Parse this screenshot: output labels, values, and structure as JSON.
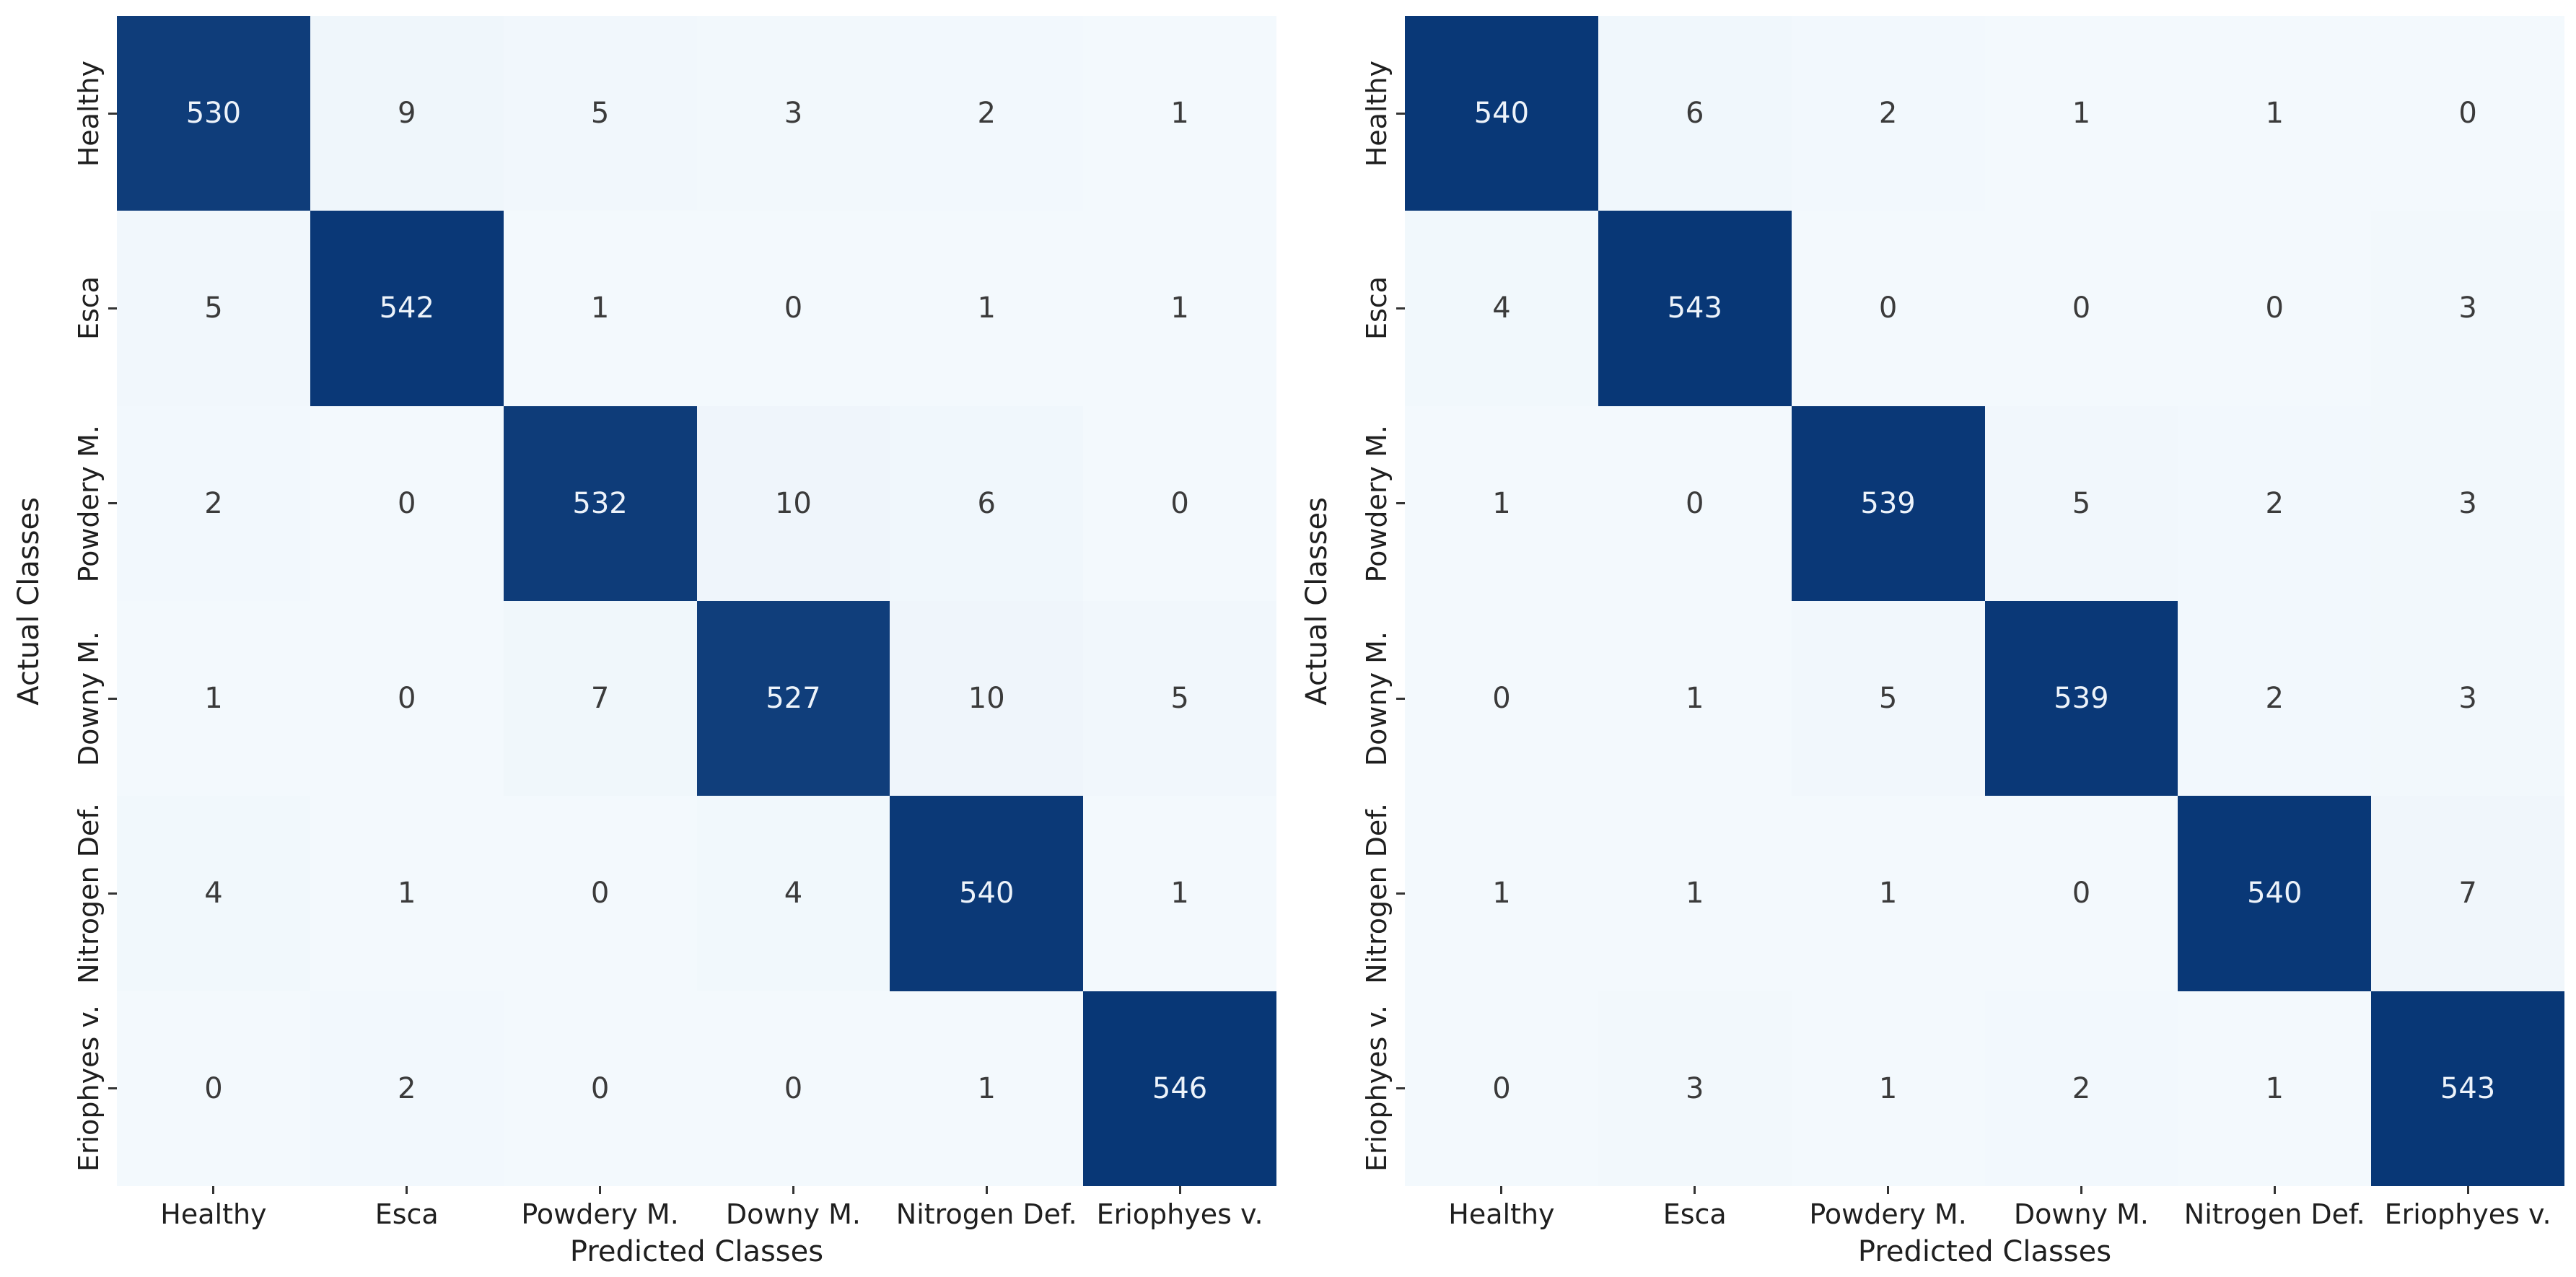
{
  "figure": {
    "background": "#ffffff",
    "panel_count": 2
  },
  "colors": {
    "low": "#f3f9fd",
    "high": "#083776",
    "cell_text_light": "#edf3fa",
    "cell_text_dark": "#3b3b3b",
    "label": "#1f1f1f",
    "tick": "#333333"
  },
  "chart_data": [
    {
      "type": "heatmap",
      "title": "",
      "xlabel": "Predicted Classes",
      "ylabel": "Actual Classes",
      "x_categories": [
        "Healthy",
        "Esca",
        "Powdery M.",
        "Downy M.",
        "Nitrogen Def.",
        "Eriophyes v."
      ],
      "y_categories": [
        "Healthy",
        "Esca",
        "Powdery M.",
        "Downy M.",
        "Nitrogen Def.",
        "Eriophyes v."
      ],
      "matrix": [
        [
          530,
          9,
          5,
          3,
          2,
          1
        ],
        [
          5,
          542,
          1,
          0,
          1,
          1
        ],
        [
          2,
          0,
          532,
          10,
          6,
          0
        ],
        [
          1,
          0,
          7,
          527,
          10,
          5
        ],
        [
          4,
          1,
          0,
          4,
          540,
          1
        ],
        [
          0,
          2,
          0,
          0,
          1,
          546
        ]
      ],
      "vmin": 0,
      "vmax": 546,
      "legend": "none",
      "grid": "off"
    },
    {
      "type": "heatmap",
      "title": "",
      "xlabel": "Predicted Classes",
      "ylabel": "Actual Classes",
      "x_categories": [
        "Healthy",
        "Esca",
        "Powdery M.",
        "Downy M.",
        "Nitrogen Def.",
        "Eriophyes v."
      ],
      "y_categories": [
        "Healthy",
        "Esca",
        "Powdery M.",
        "Downy M.",
        "Nitrogen Def.",
        "Eriophyes v."
      ],
      "matrix": [
        [
          540,
          6,
          2,
          1,
          1,
          0
        ],
        [
          4,
          543,
          0,
          0,
          0,
          3
        ],
        [
          1,
          0,
          539,
          5,
          2,
          3
        ],
        [
          0,
          1,
          5,
          539,
          2,
          3
        ],
        [
          1,
          1,
          1,
          0,
          540,
          7
        ],
        [
          0,
          3,
          1,
          2,
          1,
          543
        ]
      ],
      "vmin": 0,
      "vmax": 543,
      "legend": "none",
      "grid": "off"
    }
  ]
}
